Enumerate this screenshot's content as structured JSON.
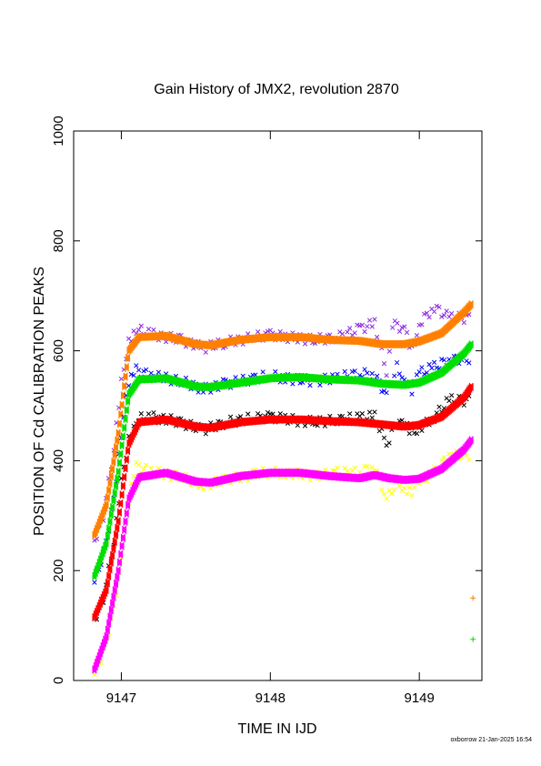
{
  "chart_data": {
    "type": "scatter",
    "title": "Gain History of JMX2, revolution 2870",
    "xlabel": "TIME IN IJD",
    "ylabel": "POSITION OF Cd CALIBRATION PEAKS",
    "xlim": [
      9146.68,
      9149.42
    ],
    "ylim": [
      0,
      1000
    ],
    "x_ticks": [
      "9147",
      "9148",
      "9149"
    ],
    "y_ticks": [
      "0",
      "200",
      "400",
      "600",
      "800",
      "1000"
    ],
    "grid": false,
    "legend": "none",
    "series": [
      {
        "color": "#ff8000",
        "points_color": "#8a2be2",
        "points": [
          [
            9146.82,
            255
          ],
          [
            9146.88,
            300
          ],
          [
            9146.95,
            420
          ],
          [
            9147.0,
            540
          ],
          [
            9147.05,
            620
          ],
          [
            9147.1,
            640
          ],
          [
            9147.2,
            630
          ],
          [
            9147.4,
            620
          ],
          [
            9147.55,
            605
          ],
          [
            9147.7,
            615
          ],
          [
            9147.9,
            625
          ],
          [
            9148.0,
            630
          ],
          [
            9148.1,
            625
          ],
          [
            9148.3,
            620
          ],
          [
            9148.45,
            625
          ],
          [
            9148.6,
            640
          ],
          [
            9148.7,
            650
          ],
          [
            9148.78,
            560
          ],
          [
            9148.82,
            650
          ],
          [
            9148.9,
            640
          ],
          [
            9148.95,
            600
          ],
          [
            9149.0,
            650
          ],
          [
            9149.1,
            680
          ],
          [
            9149.2,
            660
          ],
          [
            9149.35,
            660
          ]
        ],
        "fit": [
          [
            9146.82,
            265
          ],
          [
            9146.9,
            320
          ],
          [
            9146.98,
            450
          ],
          [
            9147.05,
            600
          ],
          [
            9147.12,
            625
          ],
          [
            9147.3,
            627
          ],
          [
            9147.5,
            612
          ],
          [
            9147.6,
            610
          ],
          [
            9147.8,
            620
          ],
          [
            9148.0,
            625
          ],
          [
            9148.2,
            625
          ],
          [
            9148.4,
            620
          ],
          [
            9148.6,
            618
          ],
          [
            9148.75,
            612
          ],
          [
            9148.9,
            612
          ],
          [
            9149.0,
            617
          ],
          [
            9149.15,
            632
          ],
          [
            9149.3,
            670
          ],
          [
            9149.35,
            685
          ]
        ]
      },
      {
        "color": "#00e000",
        "points_color": "#0000ff",
        "points": [
          [
            9146.82,
            180
          ],
          [
            9146.88,
            230
          ],
          [
            9146.95,
            330
          ],
          [
            9147.0,
            450
          ],
          [
            9147.05,
            540
          ],
          [
            9147.1,
            565
          ],
          [
            9147.2,
            555
          ],
          [
            9147.4,
            545
          ],
          [
            9147.55,
            530
          ],
          [
            9147.7,
            540
          ],
          [
            9147.9,
            550
          ],
          [
            9148.0,
            555
          ],
          [
            9148.1,
            550
          ],
          [
            9148.3,
            545
          ],
          [
            9148.45,
            550
          ],
          [
            9148.6,
            560
          ],
          [
            9148.7,
            555
          ],
          [
            9148.78,
            520
          ],
          [
            9148.85,
            570
          ],
          [
            9148.9,
            550
          ],
          [
            9148.95,
            530
          ],
          [
            9149.0,
            560
          ],
          [
            9149.1,
            570
          ],
          [
            9149.2,
            585
          ],
          [
            9149.35,
            585
          ]
        ],
        "fit": [
          [
            9146.82,
            190
          ],
          [
            9146.9,
            250
          ],
          [
            9146.98,
            380
          ],
          [
            9147.05,
            520
          ],
          [
            9147.12,
            548
          ],
          [
            9147.3,
            550
          ],
          [
            9147.5,
            535
          ],
          [
            9147.6,
            534
          ],
          [
            9147.8,
            542
          ],
          [
            9148.0,
            550
          ],
          [
            9148.2,
            552
          ],
          [
            9148.4,
            548
          ],
          [
            9148.6,
            546
          ],
          [
            9148.75,
            540
          ],
          [
            9148.9,
            538
          ],
          [
            9149.0,
            542
          ],
          [
            9149.15,
            560
          ],
          [
            9149.3,
            595
          ],
          [
            9149.35,
            612
          ]
        ]
      },
      {
        "color": "#ff0000",
        "points_color": "#000000",
        "points": [
          [
            9146.82,
            110
          ],
          [
            9146.88,
            150
          ],
          [
            9146.95,
            250
          ],
          [
            9147.0,
            360
          ],
          [
            9147.05,
            440
          ],
          [
            9147.1,
            475
          ],
          [
            9147.2,
            480
          ],
          [
            9147.4,
            470
          ],
          [
            9147.55,
            455
          ],
          [
            9147.7,
            470
          ],
          [
            9147.9,
            478
          ],
          [
            9148.0,
            480
          ],
          [
            9148.1,
            475
          ],
          [
            9148.3,
            470
          ],
          [
            9148.45,
            475
          ],
          [
            9148.6,
            478
          ],
          [
            9148.7,
            480
          ],
          [
            9148.78,
            430
          ],
          [
            9148.85,
            470
          ],
          [
            9148.9,
            465
          ],
          [
            9148.95,
            450
          ],
          [
            9149.0,
            460
          ],
          [
            9149.1,
            480
          ],
          [
            9149.2,
            510
          ],
          [
            9149.35,
            510
          ]
        ],
        "fit": [
          [
            9146.82,
            115
          ],
          [
            9146.9,
            165
          ],
          [
            9146.98,
            290
          ],
          [
            9147.05,
            430
          ],
          [
            9147.12,
            470
          ],
          [
            9147.3,
            475
          ],
          [
            9147.5,
            462
          ],
          [
            9147.6,
            460
          ],
          [
            9147.8,
            470
          ],
          [
            9148.0,
            475
          ],
          [
            9148.2,
            475
          ],
          [
            9148.4,
            472
          ],
          [
            9148.6,
            470
          ],
          [
            9148.75,
            466
          ],
          [
            9148.9,
            462
          ],
          [
            9149.0,
            465
          ],
          [
            9149.15,
            480
          ],
          [
            9149.3,
            515
          ],
          [
            9149.35,
            535
          ]
        ]
      },
      {
        "color": "#ff00ff",
        "points_color": "#ffff00",
        "points": [
          [
            9146.82,
            15
          ],
          [
            9146.88,
            50
          ],
          [
            9146.95,
            130
          ],
          [
            9147.0,
            230
          ],
          [
            9147.05,
            330
          ],
          [
            9147.1,
            390
          ],
          [
            9147.2,
            380
          ],
          [
            9147.4,
            370
          ],
          [
            9147.55,
            355
          ],
          [
            9147.7,
            365
          ],
          [
            9147.9,
            375
          ],
          [
            9148.0,
            380
          ],
          [
            9148.1,
            378
          ],
          [
            9148.3,
            372
          ],
          [
            9148.45,
            378
          ],
          [
            9148.6,
            380
          ],
          [
            9148.7,
            390
          ],
          [
            9148.78,
            330
          ],
          [
            9148.85,
            360
          ],
          [
            9148.9,
            350
          ],
          [
            9148.95,
            345
          ],
          [
            9149.0,
            360
          ],
          [
            9149.1,
            380
          ],
          [
            9149.2,
            410
          ],
          [
            9149.35,
            410
          ]
        ],
        "fit": [
          [
            9146.82,
            20
          ],
          [
            9146.9,
            80
          ],
          [
            9146.98,
            200
          ],
          [
            9147.05,
            330
          ],
          [
            9147.12,
            370
          ],
          [
            9147.3,
            378
          ],
          [
            9147.5,
            362
          ],
          [
            9147.6,
            360
          ],
          [
            9147.8,
            372
          ],
          [
            9148.0,
            378
          ],
          [
            9148.2,
            378
          ],
          [
            9148.4,
            372
          ],
          [
            9148.6,
            368
          ],
          [
            9148.7,
            374
          ],
          [
            9148.8,
            368
          ],
          [
            9148.9,
            365
          ],
          [
            9149.0,
            367
          ],
          [
            9149.15,
            385
          ],
          [
            9149.3,
            420
          ],
          [
            9149.35,
            438
          ]
        ]
      }
    ],
    "extra_points": [
      {
        "x": 9149.36,
        "y": 150,
        "color": "#ff8000"
      },
      {
        "x": 9149.36,
        "y": 75,
        "color": "#00e000"
      }
    ]
  },
  "footer": "oxborrow 21-Jan-2025 16:54"
}
